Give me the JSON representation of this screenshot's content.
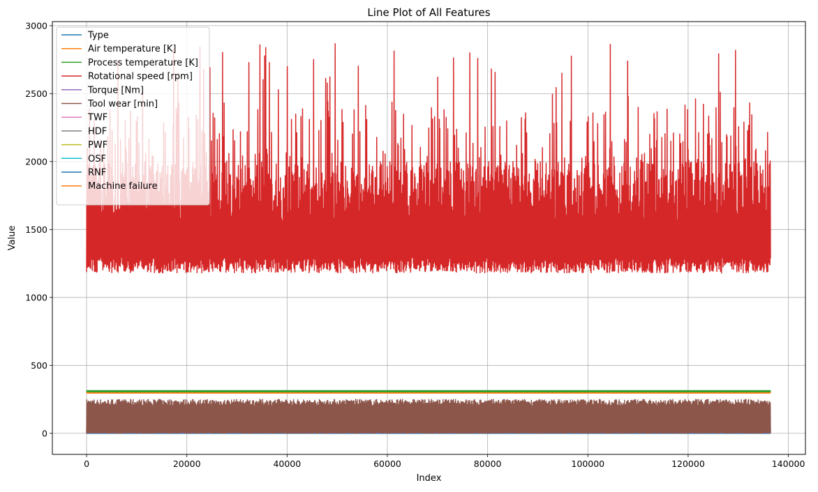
{
  "chart_data": {
    "type": "line",
    "title": "Line Plot of All Features",
    "xlabel": "Index",
    "ylabel": "Value",
    "xlim": [
      -6830,
      143400
    ],
    "ylim": [
      -155,
      3030
    ],
    "grid": true,
    "legend_position": "top-left",
    "x_ticks": [
      0,
      20000,
      40000,
      60000,
      80000,
      100000,
      120000,
      140000
    ],
    "y_ticks": [
      0,
      500,
      1000,
      1500,
      2000,
      2500,
      3000
    ],
    "x_range": [
      0,
      136428
    ],
    "series": [
      {
        "name": "Type",
        "color": "#1f77b4",
        "center": 1,
        "low": 0,
        "high": 2
      },
      {
        "name": "Air temperature [K]",
        "color": "#ff7f0e",
        "center": 299,
        "low": 296,
        "high": 304
      },
      {
        "name": "Process temperature [K]",
        "color": "#2ca02c",
        "center": 310,
        "low": 306,
        "high": 314
      },
      {
        "name": "Rotational speed [rpm]",
        "color": "#d62728",
        "center": 1520,
        "low": 1180,
        "high": 2890
      },
      {
        "name": "Torque [Nm]",
        "color": "#9467bd",
        "center": 40,
        "low": 4,
        "high": 77
      },
      {
        "name": "Tool wear [min]",
        "color": "#8c564b",
        "center": 104,
        "low": 0,
        "high": 250
      },
      {
        "name": "TWF",
        "color": "#e377c2",
        "center": 0,
        "low": 0,
        "high": 1
      },
      {
        "name": "HDF",
        "color": "#7f7f7f",
        "center": 0,
        "low": 0,
        "high": 1
      },
      {
        "name": "PWF",
        "color": "#bcbd22",
        "center": 0,
        "low": 0,
        "high": 1
      },
      {
        "name": "OSF",
        "color": "#17becf",
        "center": 0,
        "low": 0,
        "high": 1
      },
      {
        "name": "RNF",
        "color": "#1f77b4",
        "center": 0,
        "low": 0,
        "high": 1
      },
      {
        "name": "Machine failure",
        "color": "#ff7f0e",
        "center": 0,
        "low": 0,
        "high": 1
      }
    ]
  }
}
